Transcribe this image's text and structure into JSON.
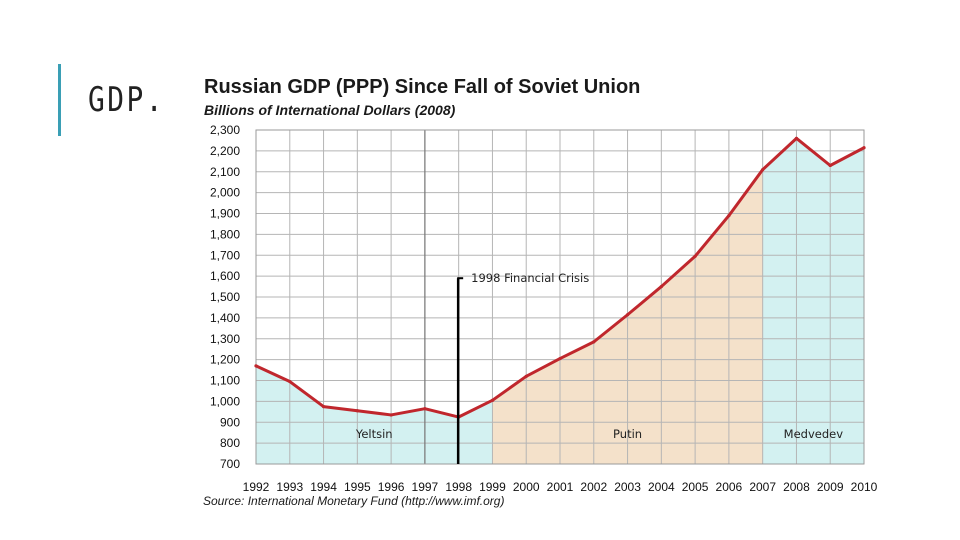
{
  "slide": {
    "title": "GDP."
  },
  "chart_data": {
    "type": "line",
    "title": "Russian GDP (PPP) Since Fall of Soviet Union",
    "subtitle": "Billions of International Dollars (2008)",
    "source": "Source: International Monetary Fund (http://www.imf.org)",
    "x": [
      1992,
      1993,
      1994,
      1995,
      1996,
      1997,
      1998,
      1999,
      2000,
      2001,
      2002,
      2003,
      2004,
      2005,
      2006,
      2007,
      2008,
      2009,
      2010
    ],
    "xtick_labels": [
      "1992",
      "1993",
      "1994",
      "1995",
      "1996",
      "1997",
      "1998",
      "1999",
      "2000",
      "2001",
      "2002",
      "2003",
      "2004",
      "2005",
      "2006",
      "2007",
      "2008",
      "2009",
      "2010"
    ],
    "ylim": [
      700,
      2300
    ],
    "ytick_labels": [
      "2,300",
      "2,200",
      "2,100",
      "2,000",
      "1,900",
      "1,800",
      "1,700",
      "1,600",
      "1,500",
      "1,400",
      "1,300",
      "1,200",
      "1,100",
      "1,000",
      "900",
      "800",
      "700"
    ],
    "series": [
      {
        "values": [
          1170,
          1095,
          975,
          955,
          935,
          965,
          925,
          1005,
          1120,
          1205,
          1285,
          1415,
          1550,
          1695,
          1890,
          2110,
          2260,
          2130,
          2215
        ],
        "color": "#c0272d"
      }
    ],
    "grid": true,
    "periods": [
      {
        "label": "Yeltsin",
        "start": 1992,
        "end": 1999,
        "color": "#d3f1f1"
      },
      {
        "label": "Putin",
        "start": 1999,
        "end": 2007,
        "color": "#f4e1ca"
      },
      {
        "label": "Medvedev",
        "start": 2007,
        "end": 2010,
        "color": "#d3f1f1"
      }
    ],
    "annotations": [
      {
        "label": "1998 Financial Crisis",
        "x": 1998
      }
    ],
    "separator_x": 1997
  }
}
